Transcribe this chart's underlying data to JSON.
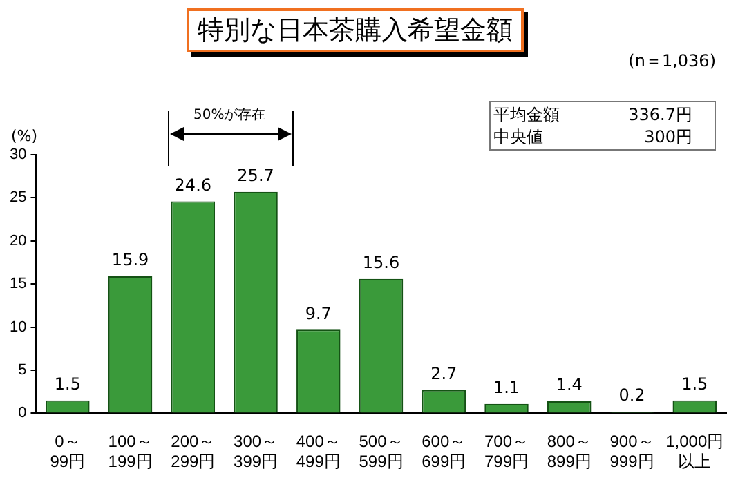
{
  "chart_data": {
    "type": "bar",
    "title": "特別な日本茶購入希望金額",
    "ylabel": "(%)",
    "categories": [
      "0～\n99円",
      "100～\n199円",
      "200～\n299円",
      "300～\n399円",
      "400～\n499円",
      "500～\n599円",
      "600～\n699円",
      "700～\n799円",
      "800～\n899円",
      "900～\n999円",
      "1,000円以上"
    ],
    "values": [
      1.5,
      15.9,
      24.6,
      25.7,
      9.7,
      15.6,
      2.7,
      1.1,
      1.4,
      0.2,
      1.5
    ],
    "color": "#3a9a3a",
    "ylim": [
      0,
      30
    ],
    "yticks": [
      0,
      5,
      10,
      15,
      20,
      25,
      30
    ],
    "grid": false,
    "legend": false,
    "data_labels": true,
    "annotations": [
      "(n＝1,036)",
      "50%が存在",
      "平均金額　336.7円",
      "中央値　300円"
    ]
  }
}
